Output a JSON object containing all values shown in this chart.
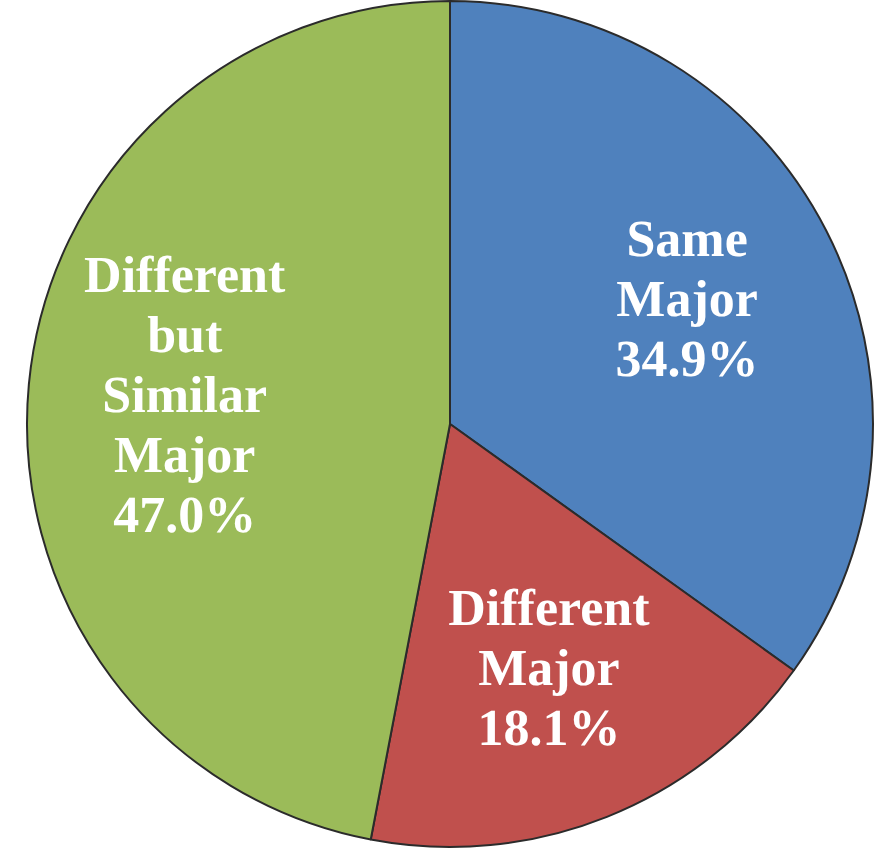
{
  "chart_data": {
    "type": "pie",
    "categories": [
      "Same Major",
      "Different Major",
      "Different but Similar Major"
    ],
    "values": [
      34.9,
      18.1,
      47.0
    ],
    "colors": [
      "#4f81bd",
      "#c0504d",
      "#9bbb59"
    ],
    "value_labels": [
      "34.9%",
      "18.1%",
      "47.0%"
    ]
  }
}
